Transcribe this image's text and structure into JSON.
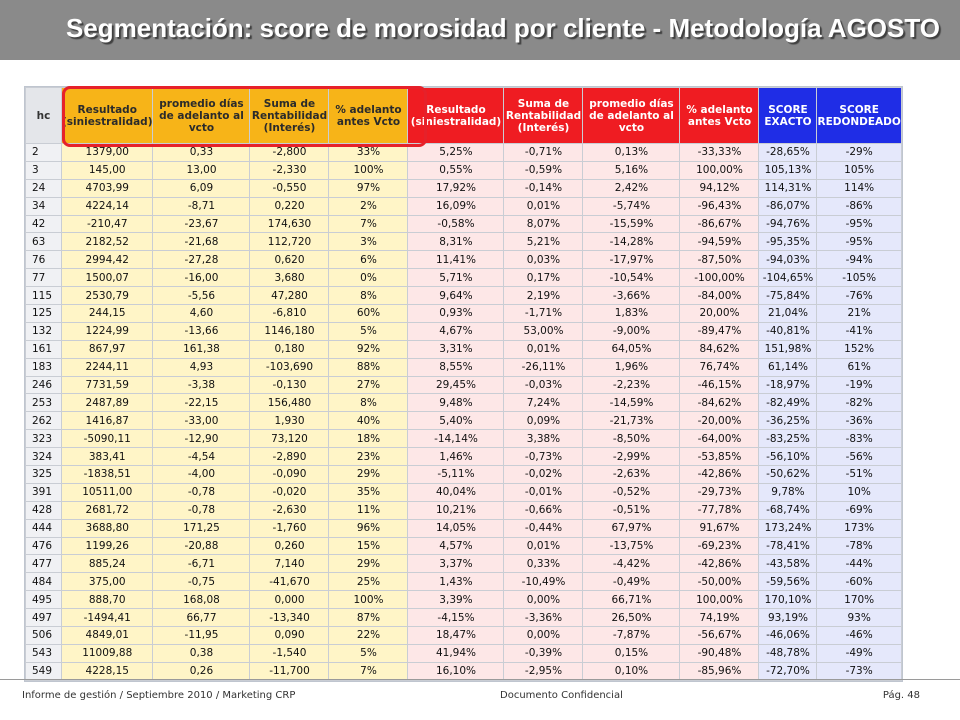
{
  "title": "Segmentación: score de morosidad por cliente - Metodología AGOSTO",
  "table": {
    "headers": [
      "hc",
      "Resultado (siniestralidad)",
      "promedio días de adelanto al vcto",
      "Suma de Rentabilidad (Interés)",
      "% adelanto antes Vcto",
      "Resultado (siniestralidad)",
      "Suma de Rentabilidad (Interés)",
      "promedio días de adelanto al vcto",
      "% adelanto antes Vcto",
      "SCORE EXACTO",
      "SCORE REDONDEADO"
    ],
    "rows": [
      [
        "2",
        "1379,00",
        "0,33",
        "-2,800",
        "33%",
        "5,25%",
        "-0,71%",
        "0,13%",
        "-33,33%",
        "-28,65%",
        "-29%"
      ],
      [
        "3",
        "145,00",
        "13,00",
        "-2,330",
        "100%",
        "0,55%",
        "-0,59%",
        "5,16%",
        "100,00%",
        "105,13%",
        "105%"
      ],
      [
        "24",
        "4703,99",
        "6,09",
        "-0,550",
        "97%",
        "17,92%",
        "-0,14%",
        "2,42%",
        "94,12%",
        "114,31%",
        "114%"
      ],
      [
        "34",
        "4224,14",
        "-8,71",
        "0,220",
        "2%",
        "16,09%",
        "0,01%",
        "-5,74%",
        "-96,43%",
        "-86,07%",
        "-86%"
      ],
      [
        "42",
        "-210,47",
        "-23,67",
        "174,630",
        "7%",
        "-0,58%",
        "8,07%",
        "-15,59%",
        "-86,67%",
        "-94,76%",
        "-95%"
      ],
      [
        "63",
        "2182,52",
        "-21,68",
        "112,720",
        "3%",
        "8,31%",
        "5,21%",
        "-14,28%",
        "-94,59%",
        "-95,35%",
        "-95%"
      ],
      [
        "76",
        "2994,42",
        "-27,28",
        "0,620",
        "6%",
        "11,41%",
        "0,03%",
        "-17,97%",
        "-87,50%",
        "-94,03%",
        "-94%"
      ],
      [
        "77",
        "1500,07",
        "-16,00",
        "3,680",
        "0%",
        "5,71%",
        "0,17%",
        "-10,54%",
        "-100,00%",
        "-104,65%",
        "-105%"
      ],
      [
        "115",
        "2530,79",
        "-5,56",
        "47,280",
        "8%",
        "9,64%",
        "2,19%",
        "-3,66%",
        "-84,00%",
        "-75,84%",
        "-76%"
      ],
      [
        "125",
        "244,15",
        "4,60",
        "-6,810",
        "60%",
        "0,93%",
        "-1,71%",
        "1,83%",
        "20,00%",
        "21,04%",
        "21%"
      ],
      [
        "132",
        "1224,99",
        "-13,66",
        "1146,180",
        "5%",
        "4,67%",
        "53,00%",
        "-9,00%",
        "-89,47%",
        "-40,81%",
        "-41%"
      ],
      [
        "161",
        "867,97",
        "161,38",
        "0,180",
        "92%",
        "3,31%",
        "0,01%",
        "64,05%",
        "84,62%",
        "151,98%",
        "152%"
      ],
      [
        "183",
        "2244,11",
        "4,93",
        "-103,690",
        "88%",
        "8,55%",
        "-26,11%",
        "1,96%",
        "76,74%",
        "61,14%",
        "61%"
      ],
      [
        "246",
        "7731,59",
        "-3,38",
        "-0,130",
        "27%",
        "29,45%",
        "-0,03%",
        "-2,23%",
        "-46,15%",
        "-18,97%",
        "-19%"
      ],
      [
        "253",
        "2487,89",
        "-22,15",
        "156,480",
        "8%",
        "9,48%",
        "7,24%",
        "-14,59%",
        "-84,62%",
        "-82,49%",
        "-82%"
      ],
      [
        "262",
        "1416,87",
        "-33,00",
        "1,930",
        "40%",
        "5,40%",
        "0,09%",
        "-21,73%",
        "-20,00%",
        "-36,25%",
        "-36%"
      ],
      [
        "323",
        "-5090,11",
        "-12,90",
        "73,120",
        "18%",
        "-14,14%",
        "3,38%",
        "-8,50%",
        "-64,00%",
        "-83,25%",
        "-83%"
      ],
      [
        "324",
        "383,41",
        "-4,54",
        "-2,890",
        "23%",
        "1,46%",
        "-0,73%",
        "-2,99%",
        "-53,85%",
        "-56,10%",
        "-56%"
      ],
      [
        "325",
        "-1838,51",
        "-4,00",
        "-0,090",
        "29%",
        "-5,11%",
        "-0,02%",
        "-2,63%",
        "-42,86%",
        "-50,62%",
        "-51%"
      ],
      [
        "391",
        "10511,00",
        "-0,78",
        "-0,020",
        "35%",
        "40,04%",
        "-0,01%",
        "-0,52%",
        "-29,73%",
        "9,78%",
        "10%"
      ],
      [
        "428",
        "2681,72",
        "-0,78",
        "-2,630",
        "11%",
        "10,21%",
        "-0,66%",
        "-0,51%",
        "-77,78%",
        "-68,74%",
        "-69%"
      ],
      [
        "444",
        "3688,80",
        "171,25",
        "-1,760",
        "96%",
        "14,05%",
        "-0,44%",
        "67,97%",
        "91,67%",
        "173,24%",
        "173%"
      ],
      [
        "476",
        "1199,26",
        "-20,88",
        "0,260",
        "15%",
        "4,57%",
        "0,01%",
        "-13,75%",
        "-69,23%",
        "-78,41%",
        "-78%"
      ],
      [
        "477",
        "885,24",
        "-6,71",
        "7,140",
        "29%",
        "3,37%",
        "0,33%",
        "-4,42%",
        "-42,86%",
        "-43,58%",
        "-44%"
      ],
      [
        "484",
        "375,00",
        "-0,75",
        "-41,670",
        "25%",
        "1,43%",
        "-10,49%",
        "-0,49%",
        "-50,00%",
        "-59,56%",
        "-60%"
      ],
      [
        "495",
        "888,70",
        "168,08",
        "0,000",
        "100%",
        "3,39%",
        "0,00%",
        "66,71%",
        "100,00%",
        "170,10%",
        "170%"
      ],
      [
        "497",
        "-1494,41",
        "66,77",
        "-13,340",
        "87%",
        "-4,15%",
        "-3,36%",
        "26,50%",
        "74,19%",
        "93,19%",
        "93%"
      ],
      [
        "506",
        "4849,01",
        "-11,95",
        "0,090",
        "22%",
        "18,47%",
        "0,00%",
        "-7,87%",
        "-56,67%",
        "-46,06%",
        "-46%"
      ],
      [
        "543",
        "11009,88",
        "0,38",
        "-1,540",
        "5%",
        "41,94%",
        "-0,39%",
        "0,15%",
        "-90,48%",
        "-48,78%",
        "-49%"
      ],
      [
        "549",
        "4228,15",
        "0,26",
        "-11,700",
        "7%",
        "16,10%",
        "-2,95%",
        "0,10%",
        "-85,96%",
        "-72,70%",
        "-73%"
      ]
    ]
  },
  "footer": {
    "left": "Informe de gestión / Septiembre 2010 / Marketing CRP",
    "center": "Documento Confidencial",
    "right": "Pág. 48"
  },
  "colors": {
    "title_bar": "#8a8a8a",
    "group_orange": "#f7b418",
    "group_red": "#ef1c22",
    "group_blue": "#1f2de6",
    "highlight_border": "#e6212a"
  }
}
